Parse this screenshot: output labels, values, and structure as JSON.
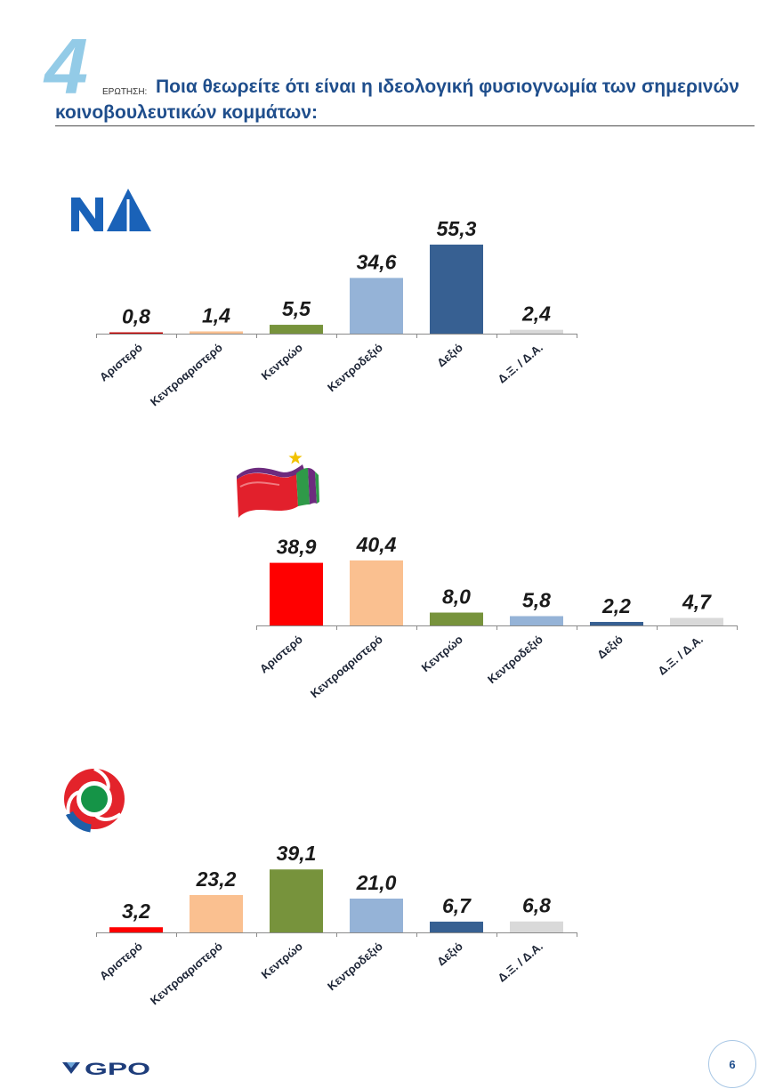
{
  "header": {
    "question_number": "4",
    "question_label": "ΕΡΩΤΗΣΗ:",
    "question_line1": "Ποια θεωρείτε ότι είναι η ιδεολογική φυσιογνωμία των σημερινών",
    "question_line2": "κοινοβουλευτικών κομμάτων:",
    "number_color": "#93cbe7",
    "text_color": "#1f4e8c"
  },
  "chart_data": [
    {
      "type": "bar",
      "party_logo": "nd-logo-icon",
      "categories": [
        "Αριστερό",
        "Κεντροαριστερό",
        "Κεντρώο",
        "Κεντροδεξιό",
        "Δεξιό",
        "Δ.Ξ. / Δ.Α."
      ],
      "values": [
        0.8,
        1.4,
        5.5,
        34.6,
        55.3,
        2.4
      ],
      "data_labels": [
        "0,8",
        "1,4",
        "5,5",
        "34,6",
        "55,3",
        "2,4"
      ],
      "colors": [
        "#c00000",
        "#fac090",
        "#77933c",
        "#95b3d7",
        "#376092",
        "#d9d9d9"
      ]
    },
    {
      "type": "bar",
      "party_logo": "syriza-logo-icon",
      "categories": [
        "Αριστερό",
        "Κεντροαριστερό",
        "Κεντρώο",
        "Κεντροδεξιό",
        "Δεξιό",
        "Δ.Ξ. / Δ.Α."
      ],
      "values": [
        38.9,
        40.4,
        8.0,
        5.8,
        2.2,
        4.7
      ],
      "data_labels": [
        "38,9",
        "40,4",
        "8,0",
        "5,8",
        "2,2",
        "4,7"
      ],
      "colors": [
        "#ff0000",
        "#fac090",
        "#77933c",
        "#95b3d7",
        "#376092",
        "#d9d9d9"
      ]
    },
    {
      "type": "bar",
      "party_logo": "pasok-logo-icon",
      "categories": [
        "Αριστερό",
        "Κεντροαριστερό",
        "Κεντρώο",
        "Κεντροδεξιό",
        "Δεξιό",
        "Δ.Ξ. / Δ.Α."
      ],
      "values": [
        3.2,
        23.2,
        39.1,
        21.0,
        6.7,
        6.8
      ],
      "data_labels": [
        "3,2",
        "23,2",
        "39,1",
        "21,0",
        "6,7",
        "6,8"
      ],
      "colors": [
        "#ff0000",
        "#fac090",
        "#77933c",
        "#95b3d7",
        "#376092",
        "#d9d9d9"
      ]
    }
  ],
  "footer": {
    "logo_icon": "gpo-logo-icon",
    "logo_text": "GPO",
    "page_number": "6"
  }
}
